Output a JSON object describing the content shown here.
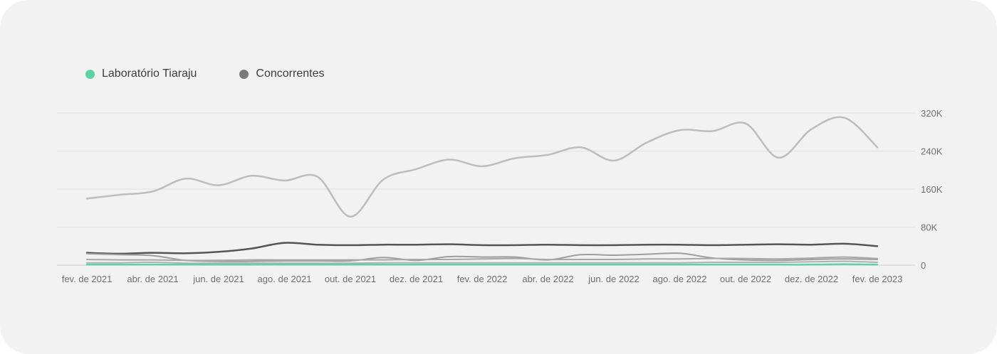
{
  "chart_data": {
    "type": "line",
    "title": "",
    "xlabel": "",
    "ylabel": "",
    "ylim": [
      0,
      320000
    ],
    "y_ticks": [
      0,
      80000,
      160000,
      240000,
      320000
    ],
    "y_tick_labels": [
      "0",
      "80K",
      "160K",
      "240K",
      "320K"
    ],
    "x_tick_labels": [
      "fev. de 2021",
      "abr. de 2021",
      "jun. de 2021",
      "ago. de 2021",
      "out. de 2021",
      "dez. de 2021",
      "fev. de 2022",
      "abr. de 2022",
      "jun. de 2022",
      "ago. de 2022",
      "out. de 2022",
      "dez. de 2022",
      "fev. de 2023"
    ],
    "x": [
      "fev. de 2021",
      "mar. de 2021",
      "abr. de 2021",
      "mai. de 2021",
      "jun. de 2021",
      "jul. de 2021",
      "ago. de 2021",
      "set. de 2021",
      "out. de 2021",
      "nov. de 2021",
      "dez. de 2021",
      "jan. de 2022",
      "fev. de 2022",
      "mar. de 2022",
      "abr. de 2022",
      "mai. de 2022",
      "jun. de 2022",
      "jul. de 2022",
      "ago. de 2022",
      "set. de 2022",
      "out. de 2022",
      "nov. de 2022",
      "dez. de 2022",
      "jan. de 2023",
      "fev. de 2023"
    ],
    "grid": true,
    "legend_position": "top-left",
    "legend": [
      {
        "label": "Laboratório Tiaraju",
        "color": "#5dd3a4"
      },
      {
        "label": "Concorrentes",
        "color": "#7a7a7a"
      }
    ],
    "series": [
      {
        "color": "#bdbdbd",
        "width": 2.5,
        "values": [
          140000,
          148000,
          155000,
          182000,
          168000,
          188000,
          178000,
          186000,
          102000,
          180000,
          202000,
          222000,
          208000,
          225000,
          232000,
          248000,
          220000,
          258000,
          284000,
          282000,
          298000,
          226000,
          286000,
          310000,
          248000
        ]
      },
      {
        "color": "#555555",
        "width": 2.5,
        "values": [
          26000,
          24000,
          26000,
          25000,
          28000,
          35000,
          47000,
          43000,
          42000,
          43000,
          43000,
          44000,
          42000,
          42000,
          43000,
          42000,
          42000,
          43000,
          43000,
          42000,
          43000,
          44000,
          43000,
          45000,
          40000
        ]
      },
      {
        "color": "#9e9e9e",
        "width": 2,
        "values": [
          24000,
          22000,
          20000,
          10000,
          8000,
          8000,
          9000,
          9000,
          9000,
          16000,
          10000,
          18000,
          17000,
          17000,
          11000,
          22000,
          21000,
          23000,
          25000,
          15000,
          11000,
          10000,
          12000,
          13000,
          12000
        ]
      },
      {
        "color": "#a8a8a8",
        "width": 2,
        "values": [
          12000,
          11000,
          11000,
          10000,
          10000,
          11000,
          11000,
          11000,
          11000,
          11000,
          12000,
          12000,
          13000,
          14000,
          12000,
          12000,
          12000,
          13000,
          13000,
          14000,
          14000,
          13000,
          15000,
          17000,
          14000
        ]
      },
      {
        "color": "#b0b0b0",
        "width": 2,
        "values": [
          5000,
          5000,
          6000,
          4000,
          4000,
          4000,
          4000,
          4000,
          4000,
          5000,
          5000,
          5000,
          5000,
          5000,
          5000,
          5000,
          5000,
          5000,
          5000,
          6000,
          6000,
          6000,
          7000,
          8000,
          6000
        ]
      },
      {
        "color": "#5dd3a4",
        "width": 2.5,
        "values": [
          1000,
          1000,
          1000,
          1000,
          1000,
          1000,
          1000,
          1000,
          1000,
          1000,
          1000,
          1000,
          1000,
          1000,
          1000,
          1000,
          1000,
          1000,
          1000,
          1000,
          1000,
          1000,
          1000,
          2000,
          1000
        ]
      }
    ]
  }
}
